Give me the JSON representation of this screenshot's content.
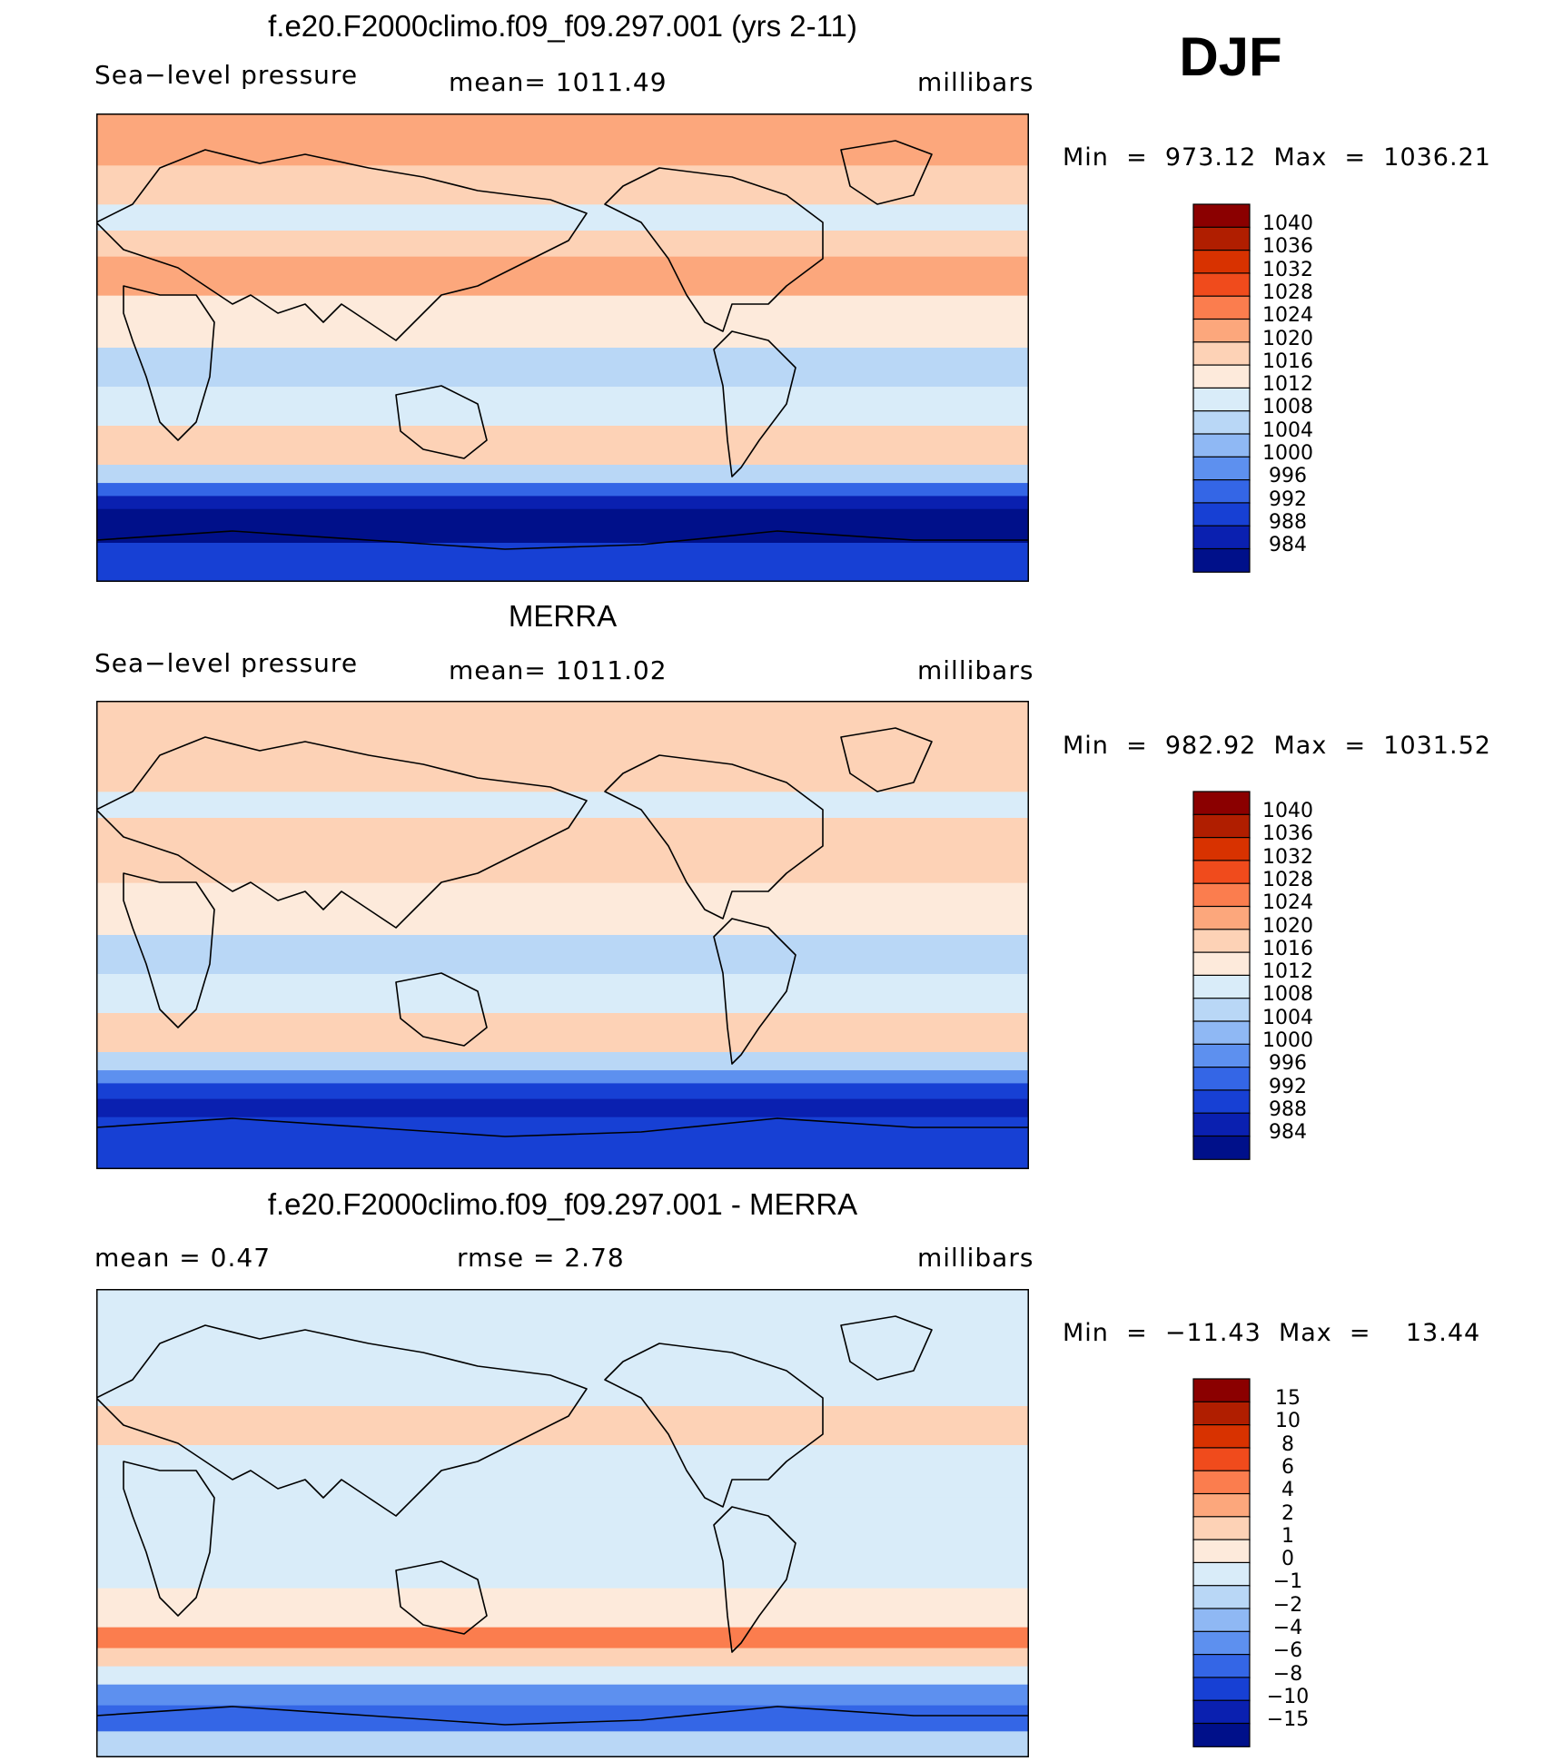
{
  "season": "DJF",
  "panels": [
    {
      "title": "f.e20.F2000climo.f09_f09.297.001 (yrs 2-11)",
      "left_label": "Sea−level pressure",
      "center_label": "mean=  1011.49",
      "units": "millibars",
      "minmax": "Min  =  973.12  Max  =  1036.21",
      "colorbar_labels": [
        "1040",
        "1036",
        "1032",
        "1028",
        "1024",
        "1020",
        "1016",
        "1012",
        "1008",
        "1004",
        "1000",
        "996",
        "992",
        "988",
        "984"
      ],
      "colorbar_colors": [
        "#8b0000",
        "#b01e00",
        "#d83200",
        "#f04b1c",
        "#fb7d4e",
        "#fca77c",
        "#fdd2b6",
        "#fdeadb",
        "#d9ecf9",
        "#b9d7f6",
        "#8fb8f4",
        "#5d90ef",
        "#3466e6",
        "#1740d4",
        "#0a20b0",
        "#00108a"
      ],
      "bands": [
        {
          "latitude": 85,
          "pressure_class": 5
        },
        {
          "latitude": 70,
          "pressure_class": 6
        },
        {
          "latitude": 55,
          "pressure_class": 8
        },
        {
          "latitude": 45,
          "pressure_class": 6
        },
        {
          "latitude": 35,
          "pressure_class": 5
        },
        {
          "latitude": 20,
          "pressure_class": 7
        },
        {
          "latitude": 0,
          "pressure_class": 9
        },
        {
          "latitude": -15,
          "pressure_class": 8
        },
        {
          "latitude": -30,
          "pressure_class": 6
        },
        {
          "latitude": -45,
          "pressure_class": 9
        },
        {
          "latitude": -52,
          "pressure_class": 12
        },
        {
          "latitude": -57,
          "pressure_class": 14
        },
        {
          "latitude": -62,
          "pressure_class": 15
        },
        {
          "latitude": -75,
          "pressure_class": 13
        },
        {
          "latitude": -90,
          "pressure_class": 12
        }
      ]
    },
    {
      "title": "MERRA",
      "left_label": "Sea−level pressure",
      "center_label": "mean=  1011.02",
      "units": "millibars",
      "minmax": "Min  =  982.92  Max  =  1031.52",
      "colorbar_labels": [
        "1040",
        "1036",
        "1032",
        "1028",
        "1024",
        "1020",
        "1016",
        "1012",
        "1008",
        "1004",
        "1000",
        "996",
        "992",
        "988",
        "984"
      ],
      "colorbar_colors": [
        "#8b0000",
        "#b01e00",
        "#d83200",
        "#f04b1c",
        "#fb7d4e",
        "#fca77c",
        "#fdd2b6",
        "#fdeadb",
        "#d9ecf9",
        "#b9d7f6",
        "#8fb8f4",
        "#5d90ef",
        "#3466e6",
        "#1740d4",
        "#0a20b0",
        "#00108a"
      ],
      "bands": [
        {
          "latitude": 85,
          "pressure_class": 6
        },
        {
          "latitude": 70,
          "pressure_class": 6
        },
        {
          "latitude": 55,
          "pressure_class": 8
        },
        {
          "latitude": 45,
          "pressure_class": 6
        },
        {
          "latitude": 35,
          "pressure_class": 6
        },
        {
          "latitude": 20,
          "pressure_class": 7
        },
        {
          "latitude": 0,
          "pressure_class": 9
        },
        {
          "latitude": -15,
          "pressure_class": 8
        },
        {
          "latitude": -30,
          "pressure_class": 6
        },
        {
          "latitude": -45,
          "pressure_class": 9
        },
        {
          "latitude": -52,
          "pressure_class": 11
        },
        {
          "latitude": -57,
          "pressure_class": 13
        },
        {
          "latitude": -63,
          "pressure_class": 14
        },
        {
          "latitude": -70,
          "pressure_class": 13
        },
        {
          "latitude": -90,
          "pressure_class": 12
        }
      ]
    },
    {
      "title": "f.e20.F2000climo.f09_f09.297.001 - MERRA",
      "left_label": "mean  =     0.47",
      "center_label": "rmse  =     2.78",
      "units": "millibars",
      "minmax": "Min  =  −11.43  Max  =    13.44",
      "colorbar_labels": [
        "15",
        "10",
        "8",
        "6",
        "4",
        "2",
        "1",
        "0",
        "−1",
        "−2",
        "−4",
        "−6",
        "−8",
        "−10",
        "−15"
      ],
      "colorbar_colors": [
        "#8b0000",
        "#b01e00",
        "#d83200",
        "#f04b1c",
        "#fb7d4e",
        "#fca77c",
        "#fdd2b6",
        "#fdeadb",
        "#d9ecf9",
        "#b9d7f6",
        "#8fb8f4",
        "#5d90ef",
        "#3466e6",
        "#1740d4",
        "#0a20b0",
        "#00108a"
      ],
      "bands": [
        {
          "latitude": 85,
          "pressure_class": 8
        },
        {
          "latitude": 65,
          "pressure_class": 8
        },
        {
          "latitude": 45,
          "pressure_class": 6
        },
        {
          "latitude": 30,
          "pressure_class": 8
        },
        {
          "latitude": 10,
          "pressure_class": 8
        },
        {
          "latitude": -10,
          "pressure_class": 8
        },
        {
          "latitude": -25,
          "pressure_class": 7
        },
        {
          "latitude": -40,
          "pressure_class": 4
        },
        {
          "latitude": -48,
          "pressure_class": 6
        },
        {
          "latitude": -55,
          "pressure_class": 8
        },
        {
          "latitude": -62,
          "pressure_class": 11
        },
        {
          "latitude": -70,
          "pressure_class": 12
        },
        {
          "latitude": -80,
          "pressure_class": 9
        },
        {
          "latitude": -90,
          "pressure_class": 9
        }
      ]
    }
  ],
  "chart_data": [
    {
      "type": "heatmap",
      "title": "f.e20.F2000climo.f09_f09.297.001 (yrs 2-11)",
      "variable": "Sea−level pressure",
      "units": "millibars",
      "mean": 1011.49,
      "min": 973.12,
      "max": 1036.21,
      "levels": [
        984,
        988,
        992,
        996,
        1000,
        1004,
        1008,
        1012,
        1016,
        1020,
        1024,
        1028,
        1032,
        1036,
        1040
      ]
    },
    {
      "type": "heatmap",
      "title": "MERRA",
      "variable": "Sea−level pressure",
      "units": "millibars",
      "mean": 1011.02,
      "min": 982.92,
      "max": 1031.52,
      "levels": [
        984,
        988,
        992,
        996,
        1000,
        1004,
        1008,
        1012,
        1016,
        1020,
        1024,
        1028,
        1032,
        1036,
        1040
      ]
    },
    {
      "type": "heatmap",
      "title": "f.e20.F2000climo.f09_f09.297.001 - MERRA",
      "units": "millibars",
      "mean": 0.47,
      "rmse": 2.78,
      "min": -11.43,
      "max": 13.44,
      "levels": [
        -15,
        -10,
        -8,
        -6,
        -4,
        -2,
        -1,
        0,
        1,
        2,
        4,
        6,
        8,
        10,
        15
      ]
    }
  ]
}
